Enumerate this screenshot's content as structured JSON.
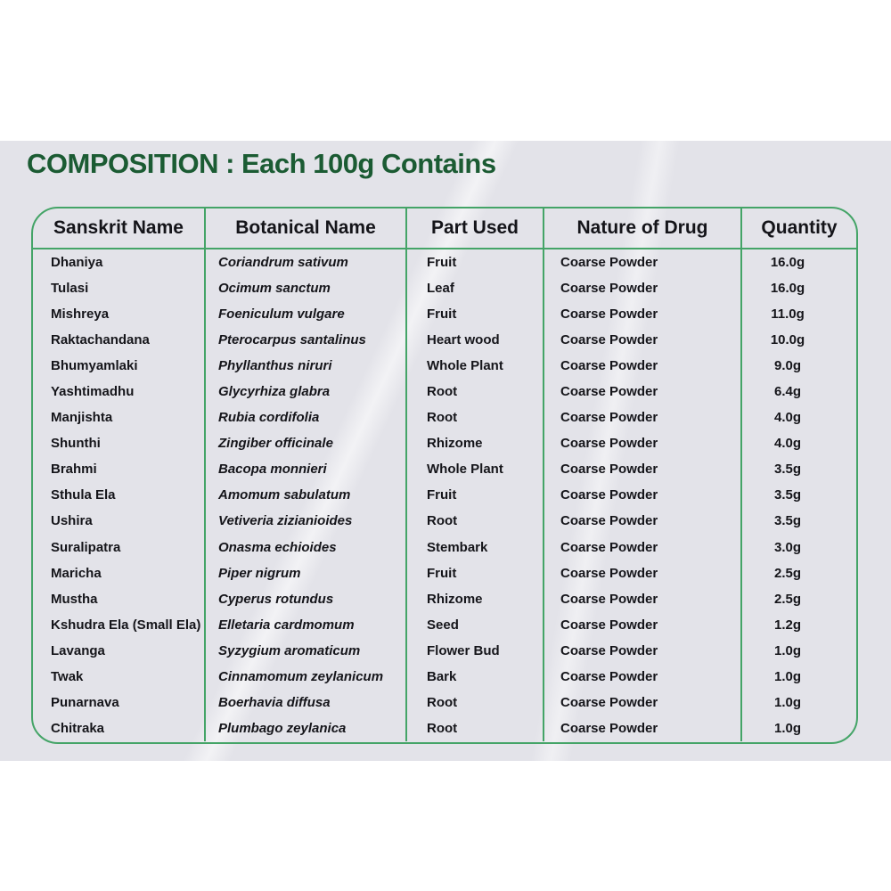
{
  "title": "COMPOSITION : Each 100g Contains",
  "colors": {
    "title_green": "#1b5b33",
    "line_green": "#44a467",
    "label_background": "#e3e3e9",
    "text": "#15151a"
  },
  "table": {
    "columns": [
      "Sanskrit Name",
      "Botanical Name",
      "Part Used",
      "Nature of Drug",
      "Quantity"
    ],
    "rows": [
      {
        "sanskrit": "Dhaniya",
        "botanical": "Coriandrum sativum",
        "part": "Fruit",
        "nature": "Coarse Powder",
        "quantity": "16.0g"
      },
      {
        "sanskrit": "Tulasi",
        "botanical": "Ocimum sanctum",
        "part": "Leaf",
        "nature": "Coarse Powder",
        "quantity": "16.0g"
      },
      {
        "sanskrit": "Mishreya",
        "botanical": "Foeniculum vulgare",
        "part": "Fruit",
        "nature": "Coarse Powder",
        "quantity": "11.0g"
      },
      {
        "sanskrit": "Raktachandana",
        "botanical": "Pterocarpus santalinus",
        "part": "Heart wood",
        "nature": "Coarse Powder",
        "quantity": "10.0g"
      },
      {
        "sanskrit": "Bhumyamlaki",
        "botanical": "Phyllanthus niruri",
        "part": "Whole Plant",
        "nature": "Coarse Powder",
        "quantity": "9.0g"
      },
      {
        "sanskrit": "Yashtimadhu",
        "botanical": "Glycyrhiza glabra",
        "part": "Root",
        "nature": "Coarse Powder",
        "quantity": "6.4g"
      },
      {
        "sanskrit": "Manjishta",
        "botanical": "Rubia cordifolia",
        "part": "Root",
        "nature": "Coarse Powder",
        "quantity": "4.0g"
      },
      {
        "sanskrit": "Shunthi",
        "botanical": "Zingiber officinale",
        "part": "Rhizome",
        "nature": "Coarse Powder",
        "quantity": "4.0g"
      },
      {
        "sanskrit": "Brahmi",
        "botanical": "Bacopa monnieri",
        "part": "Whole Plant",
        "nature": "Coarse Powder",
        "quantity": "3.5g"
      },
      {
        "sanskrit": "Sthula Ela",
        "botanical": "Amomum sabulatum",
        "part": "Fruit",
        "nature": "Coarse Powder",
        "quantity": "3.5g"
      },
      {
        "sanskrit": "Ushira",
        "botanical": "Vetiveria zizianioides",
        "part": "Root",
        "nature": "Coarse Powder",
        "quantity": "3.5g"
      },
      {
        "sanskrit": "Suralipatra",
        "botanical": "Onasma echioides",
        "part": "Stembark",
        "nature": "Coarse Powder",
        "quantity": "3.0g"
      },
      {
        "sanskrit": "Maricha",
        "botanical": "Piper nigrum",
        "part": "Fruit",
        "nature": "Coarse Powder",
        "quantity": "2.5g"
      },
      {
        "sanskrit": "Mustha",
        "botanical": "Cyperus rotundus",
        "part": "Rhizome",
        "nature": "Coarse Powder",
        "quantity": "2.5g"
      },
      {
        "sanskrit": "Kshudra Ela (Small Ela)",
        "botanical": "Elletaria cardmomum",
        "part": "Seed",
        "nature": "Coarse Powder",
        "quantity": "1.2g"
      },
      {
        "sanskrit": "Lavanga",
        "botanical": "Syzygium aromaticum",
        "part": "Flower Bud",
        "nature": "Coarse Powder",
        "quantity": "1.0g"
      },
      {
        "sanskrit": "Twak",
        "botanical": "Cinnamomum zeylanicum",
        "part": "Bark",
        "nature": "Coarse Powder",
        "quantity": "1.0g"
      },
      {
        "sanskrit": "Punarnava",
        "botanical": "Boerhavia diffusa",
        "part": "Root",
        "nature": "Coarse Powder",
        "quantity": "1.0g"
      },
      {
        "sanskrit": "Chitraka",
        "botanical": "Plumbago zeylanica",
        "part": "Root",
        "nature": "Coarse Powder",
        "quantity": "1.0g"
      }
    ]
  }
}
